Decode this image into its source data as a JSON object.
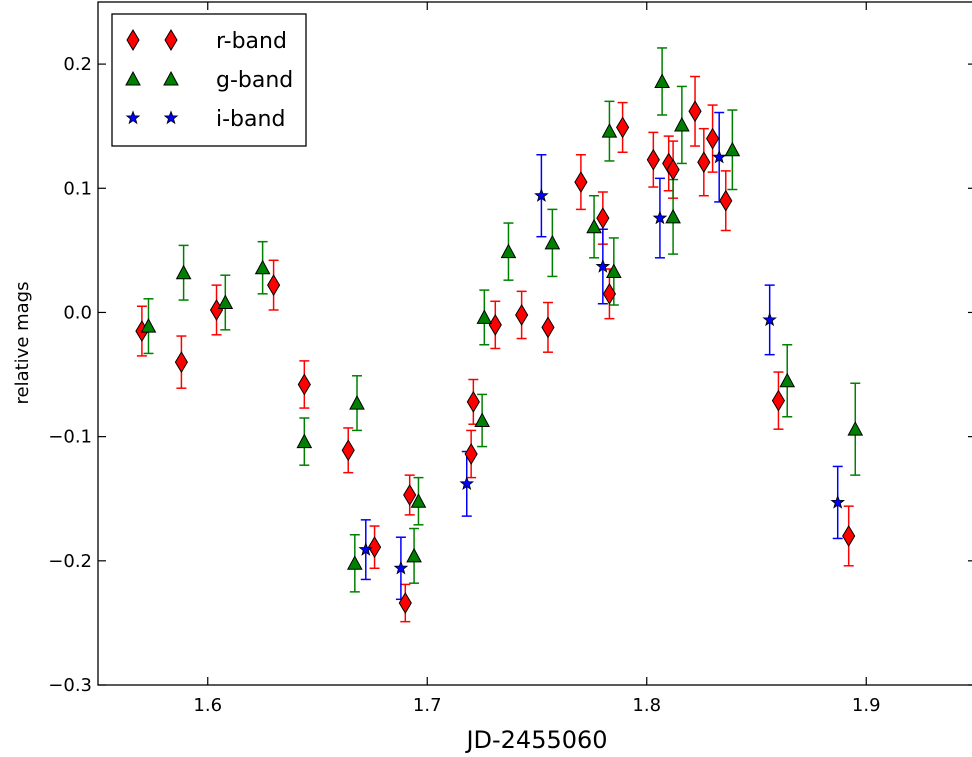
{
  "chart_data": {
    "type": "scatter",
    "xlabel": "JD-2455060",
    "ylabel": "relative mags",
    "xlim": [
      1.55,
      1.95
    ],
    "ylim": [
      -0.3,
      0.25
    ],
    "xticks": [
      1.6,
      1.7,
      1.8,
      1.9
    ],
    "xtick_labels": [
      "1.6",
      "1.7",
      "1.8",
      "1.9"
    ],
    "yticks": [
      -0.3,
      -0.2,
      -0.1,
      0.0,
      0.1,
      0.2
    ],
    "ytick_labels": [
      "−0.3",
      "−0.2",
      "−0.1",
      "0.0",
      "0.1",
      "0.2"
    ],
    "grid": false,
    "legend_position": "top-left",
    "series": [
      {
        "name": "r-band",
        "marker": "diamond",
        "color": "#ff0000",
        "points": [
          {
            "x": 1.57,
            "y": -0.015,
            "err": 0.02
          },
          {
            "x": 1.588,
            "y": -0.04,
            "err": 0.021
          },
          {
            "x": 1.604,
            "y": 0.002,
            "err": 0.02
          },
          {
            "x": 1.63,
            "y": 0.022,
            "err": 0.02
          },
          {
            "x": 1.644,
            "y": -0.058,
            "err": 0.019
          },
          {
            "x": 1.664,
            "y": -0.111,
            "err": 0.018
          },
          {
            "x": 1.676,
            "y": -0.189,
            "err": 0.017
          },
          {
            "x": 1.69,
            "y": -0.234,
            "err": 0.015
          },
          {
            "x": 1.692,
            "y": -0.147,
            "err": 0.016
          },
          {
            "x": 1.72,
            "y": -0.114,
            "err": 0.019
          },
          {
            "x": 1.721,
            "y": -0.072,
            "err": 0.018
          },
          {
            "x": 1.731,
            "y": -0.01,
            "err": 0.019
          },
          {
            "x": 1.743,
            "y": -0.002,
            "err": 0.019
          },
          {
            "x": 1.755,
            "y": -0.012,
            "err": 0.02
          },
          {
            "x": 1.77,
            "y": 0.105,
            "err": 0.022
          },
          {
            "x": 1.78,
            "y": 0.076,
            "err": 0.021
          },
          {
            "x": 1.783,
            "y": 0.015,
            "err": 0.02
          },
          {
            "x": 1.789,
            "y": 0.149,
            "err": 0.02
          },
          {
            "x": 1.803,
            "y": 0.123,
            "err": 0.022
          },
          {
            "x": 1.81,
            "y": 0.12,
            "err": 0.022
          },
          {
            "x": 1.812,
            "y": 0.115,
            "err": 0.023
          },
          {
            "x": 1.822,
            "y": 0.162,
            "err": 0.028
          },
          {
            "x": 1.826,
            "y": 0.121,
            "err": 0.027
          },
          {
            "x": 1.83,
            "y": 0.14,
            "err": 0.027
          },
          {
            "x": 1.836,
            "y": 0.09,
            "err": 0.024
          },
          {
            "x": 1.86,
            "y": -0.071,
            "err": 0.023
          },
          {
            "x": 1.892,
            "y": -0.18,
            "err": 0.024
          }
        ]
      },
      {
        "name": "g-band",
        "marker": "triangle",
        "color": "#008000",
        "points": [
          {
            "x": 1.573,
            "y": -0.011,
            "err": 0.022
          },
          {
            "x": 1.589,
            "y": 0.032,
            "err": 0.022
          },
          {
            "x": 1.608,
            "y": 0.008,
            "err": 0.022
          },
          {
            "x": 1.625,
            "y": 0.036,
            "err": 0.021
          },
          {
            "x": 1.644,
            "y": -0.104,
            "err": 0.019
          },
          {
            "x": 1.668,
            "y": -0.073,
            "err": 0.022
          },
          {
            "x": 1.667,
            "y": -0.202,
            "err": 0.023
          },
          {
            "x": 1.694,
            "y": -0.196,
            "err": 0.022
          },
          {
            "x": 1.696,
            "y": -0.152,
            "err": 0.019
          },
          {
            "x": 1.725,
            "y": -0.087,
            "err": 0.021
          },
          {
            "x": 1.726,
            "y": -0.004,
            "err": 0.022
          },
          {
            "x": 1.737,
            "y": 0.049,
            "err": 0.023
          },
          {
            "x": 1.757,
            "y": 0.056,
            "err": 0.027
          },
          {
            "x": 1.776,
            "y": 0.069,
            "err": 0.025
          },
          {
            "x": 1.783,
            "y": 0.146,
            "err": 0.024
          },
          {
            "x": 1.785,
            "y": 0.033,
            "err": 0.027
          },
          {
            "x": 1.807,
            "y": 0.186,
            "err": 0.027
          },
          {
            "x": 1.812,
            "y": 0.077,
            "err": 0.03
          },
          {
            "x": 1.816,
            "y": 0.151,
            "err": 0.031
          },
          {
            "x": 1.839,
            "y": 0.131,
            "err": 0.032
          },
          {
            "x": 1.864,
            "y": -0.055,
            "err": 0.029
          },
          {
            "x": 1.895,
            "y": -0.094,
            "err": 0.037
          }
        ]
      },
      {
        "name": "i-band",
        "marker": "star",
        "color": "#0000ff",
        "points": [
          {
            "x": 1.672,
            "y": -0.191,
            "err": 0.024
          },
          {
            "x": 1.688,
            "y": -0.206,
            "err": 0.025
          },
          {
            "x": 1.718,
            "y": -0.138,
            "err": 0.026
          },
          {
            "x": 1.752,
            "y": 0.094,
            "err": 0.033
          },
          {
            "x": 1.78,
            "y": 0.037,
            "err": 0.03
          },
          {
            "x": 1.806,
            "y": 0.076,
            "err": 0.032
          },
          {
            "x": 1.833,
            "y": 0.125,
            "err": 0.036
          },
          {
            "x": 1.856,
            "y": -0.006,
            "err": 0.028
          },
          {
            "x": 1.887,
            "y": -0.153,
            "err": 0.029
          }
        ]
      }
    ]
  }
}
